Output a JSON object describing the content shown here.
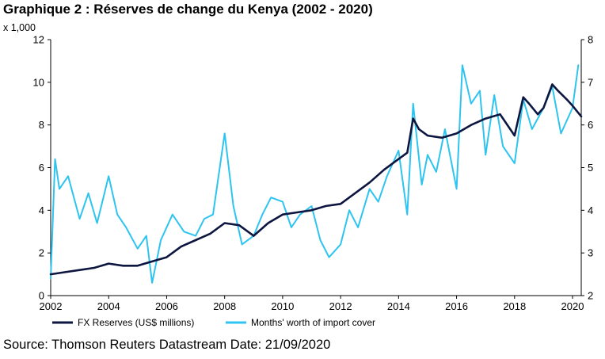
{
  "header": {
    "title": "Graphique 2 : Réserves de change du Kenya (2002 - 2020)",
    "unit_note": "x 1,000"
  },
  "footer": {
    "source": "Source: Thomson Reuters Datastream Date: 21/09/2020"
  },
  "chart_data": {
    "type": "line",
    "title": "Graphique 2 : Réserves de change du Kenya (2002 - 2020)",
    "xlabel": "",
    "ylabel": "x 1,000",
    "xlim": [
      2002,
      2020.3
    ],
    "ylim_left": [
      0,
      12
    ],
    "ylim_right": [
      2,
      8
    ],
    "x_ticks": [
      "2002",
      "2004",
      "2006",
      "2008",
      "2010",
      "2012",
      "2014",
      "2016",
      "2018",
      "2020"
    ],
    "y_left_ticks": [
      "0",
      "2",
      "4",
      "6",
      "8",
      "10",
      "12"
    ],
    "y_right_ticks": [
      "2",
      "3",
      "4",
      "5",
      "6",
      "7",
      "8"
    ],
    "grid": false,
    "legend_position": "bottom",
    "colors": {
      "reserves": "#0d1640",
      "cover": "#2ec4f0"
    },
    "series": [
      {
        "name": "FX Reserves (US$ millions)",
        "axis": "left",
        "x": [
          2002.0,
          2002.5,
          2003.0,
          2003.5,
          2004.0,
          2004.5,
          2005.0,
          2005.5,
          2006.0,
          2006.5,
          2007.0,
          2007.5,
          2008.0,
          2008.5,
          2009.0,
          2009.5,
          2010.0,
          2010.5,
          2011.0,
          2011.5,
          2012.0,
          2012.5,
          2013.0,
          2013.5,
          2014.0,
          2014.3,
          2014.5,
          2014.7,
          2015.0,
          2015.5,
          2016.0,
          2016.5,
          2017.0,
          2017.5,
          2018.0,
          2018.3,
          2018.5,
          2018.8,
          2019.0,
          2019.3,
          2019.5,
          2019.8,
          2020.0,
          2020.3
        ],
        "values": [
          1.0,
          1.1,
          1.2,
          1.3,
          1.5,
          1.4,
          1.4,
          1.6,
          1.8,
          2.3,
          2.6,
          2.9,
          3.4,
          3.3,
          2.8,
          3.4,
          3.8,
          3.9,
          4.0,
          4.2,
          4.3,
          4.8,
          5.3,
          5.9,
          6.4,
          6.7,
          8.3,
          7.8,
          7.5,
          7.4,
          7.6,
          8.0,
          8.3,
          8.5,
          7.5,
          9.3,
          9.0,
          8.5,
          8.8,
          9.9,
          9.6,
          9.2,
          8.9,
          8.4
        ]
      },
      {
        "name": "Months' worth of import cover",
        "axis": "right",
        "x": [
          2002.0,
          2002.15,
          2002.3,
          2002.6,
          2003.0,
          2003.3,
          2003.6,
          2004.0,
          2004.3,
          2004.6,
          2005.0,
          2005.3,
          2005.5,
          2005.8,
          2006.2,
          2006.6,
          2007.0,
          2007.3,
          2007.6,
          2008.0,
          2008.3,
          2008.6,
          2009.0,
          2009.3,
          2009.6,
          2010.0,
          2010.3,
          2010.6,
          2011.0,
          2011.3,
          2011.6,
          2012.0,
          2012.3,
          2012.6,
          2013.0,
          2013.3,
          2013.6,
          2014.0,
          2014.3,
          2014.5,
          2014.8,
          2015.0,
          2015.3,
          2015.6,
          2016.0,
          2016.2,
          2016.5,
          2016.8,
          2017.0,
          2017.3,
          2017.6,
          2018.0,
          2018.3,
          2018.6,
          2019.0,
          2019.3,
          2019.6,
          2020.0,
          2020.2
        ],
        "values": [
          2.4,
          5.2,
          4.5,
          4.8,
          3.8,
          4.4,
          3.7,
          4.8,
          3.9,
          3.6,
          3.1,
          3.4,
          2.3,
          3.3,
          3.9,
          3.5,
          3.4,
          3.8,
          3.9,
          5.8,
          4.1,
          3.2,
          3.4,
          3.9,
          4.3,
          4.2,
          3.6,
          3.9,
          4.1,
          3.3,
          2.9,
          3.2,
          4.0,
          3.6,
          4.5,
          4.2,
          4.8,
          5.4,
          3.9,
          6.5,
          4.6,
          5.3,
          4.9,
          5.9,
          4.5,
          7.4,
          6.5,
          6.8,
          5.3,
          6.7,
          5.5,
          5.1,
          6.6,
          5.9,
          6.4,
          6.9,
          5.8,
          6.4,
          7.4
        ]
      }
    ]
  }
}
